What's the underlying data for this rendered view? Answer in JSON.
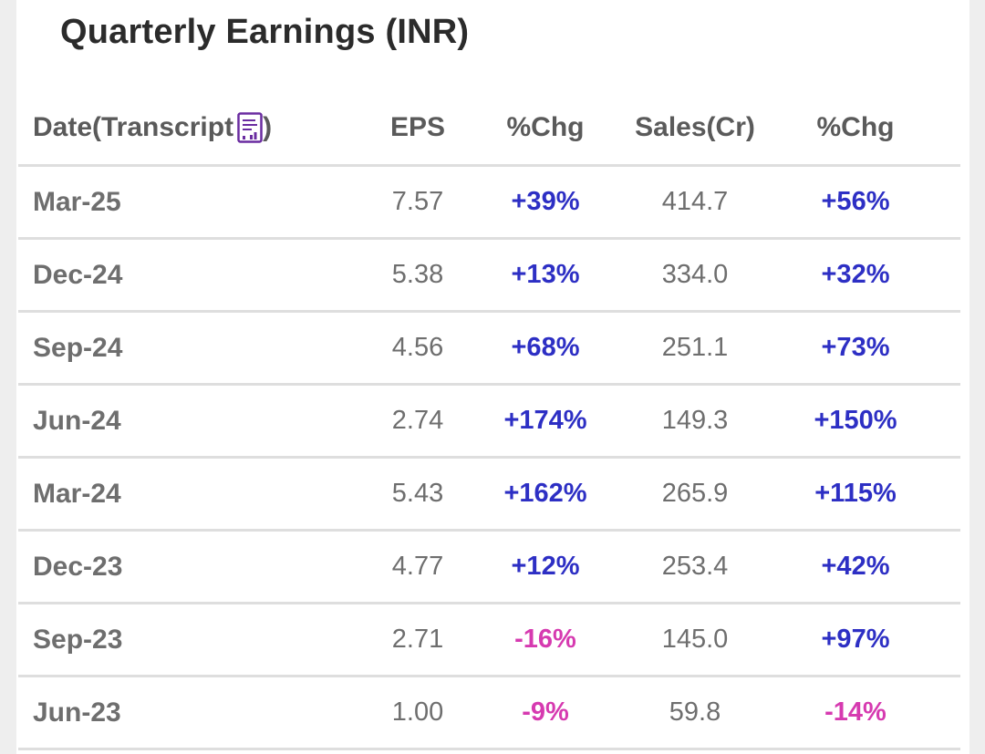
{
  "title": "Quarterly Earnings (INR)",
  "colors": {
    "positive": "#2d2fc4",
    "negative": "#d63ab0",
    "icon": "#6a2ca0"
  },
  "header": {
    "date_prefix": "Date(Transcript",
    "date_suffix": ")",
    "transcript_icon": "transcript-document-icon",
    "eps": "EPS",
    "eps_chg": "%Chg",
    "sales": "Sales(Cr)",
    "sales_chg": "%Chg"
  },
  "rows": [
    {
      "date": "Mar-25",
      "eps": "7.57",
      "eps_chg": "+39%",
      "eps_sign": "pos",
      "sales": "414.7",
      "sales_chg": "+56%",
      "sales_sign": "pos"
    },
    {
      "date": "Dec-24",
      "eps": "5.38",
      "eps_chg": "+13%",
      "eps_sign": "pos",
      "sales": "334.0",
      "sales_chg": "+32%",
      "sales_sign": "pos"
    },
    {
      "date": "Sep-24",
      "eps": "4.56",
      "eps_chg": "+68%",
      "eps_sign": "pos",
      "sales": "251.1",
      "sales_chg": "+73%",
      "sales_sign": "pos"
    },
    {
      "date": "Jun-24",
      "eps": "2.74",
      "eps_chg": "+174%",
      "eps_sign": "pos",
      "sales": "149.3",
      "sales_chg": "+150%",
      "sales_sign": "pos"
    },
    {
      "date": "Mar-24",
      "eps": "5.43",
      "eps_chg": "+162%",
      "eps_sign": "pos",
      "sales": "265.9",
      "sales_chg": "+115%",
      "sales_sign": "pos"
    },
    {
      "date": "Dec-23",
      "eps": "4.77",
      "eps_chg": "+12%",
      "eps_sign": "pos",
      "sales": "253.4",
      "sales_chg": "+42%",
      "sales_sign": "pos"
    },
    {
      "date": "Sep-23",
      "eps": "2.71",
      "eps_chg": "-16%",
      "eps_sign": "neg",
      "sales": "145.0",
      "sales_chg": "+97%",
      "sales_sign": "pos"
    },
    {
      "date": "Jun-23",
      "eps": "1.00",
      "eps_chg": "-9%",
      "eps_sign": "neg",
      "sales": "59.8",
      "sales_chg": "-14%",
      "sales_sign": "neg"
    }
  ]
}
